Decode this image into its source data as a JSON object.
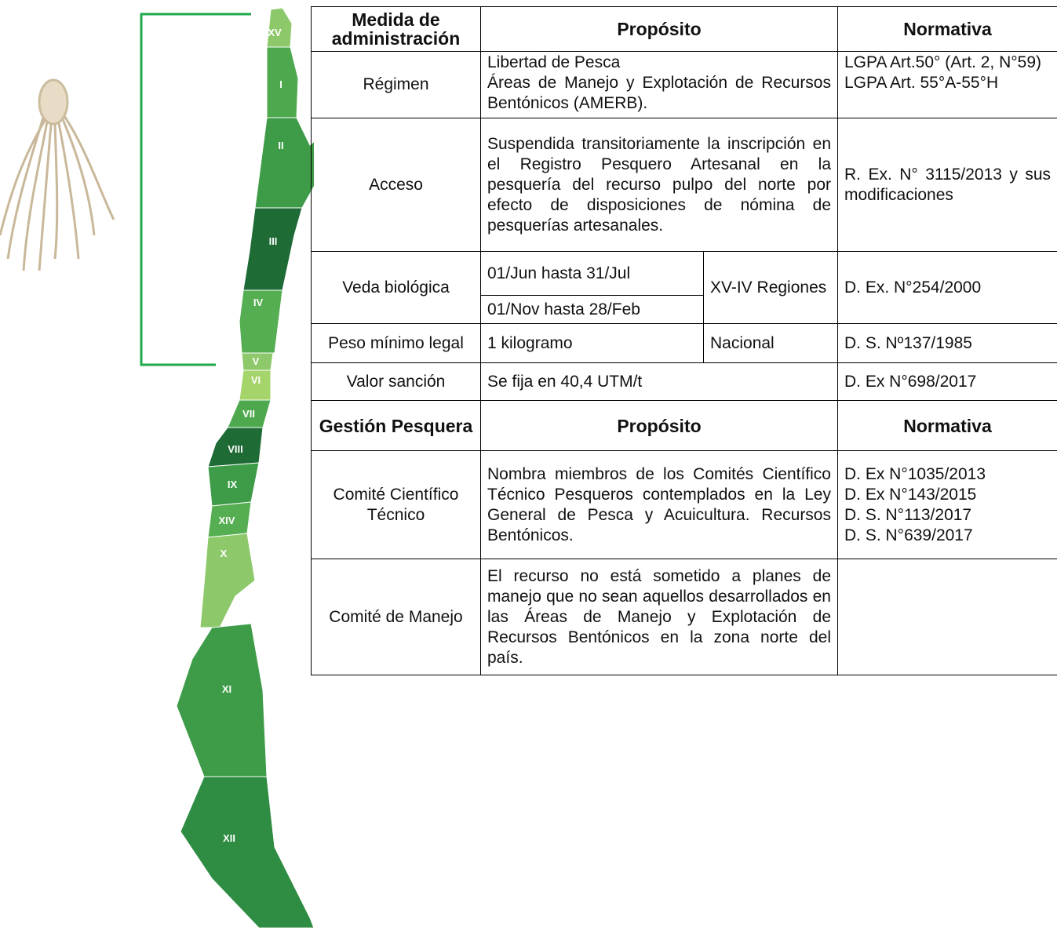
{
  "map_labels": [
    "XV",
    "I",
    "II",
    "III",
    "IV",
    "V",
    "VI",
    "VII",
    "VIII",
    "IX",
    "XIV",
    "X",
    "XI",
    "XII"
  ],
  "table": {
    "header1": [
      "Medida de administración",
      "Propósito",
      "Normativa"
    ],
    "rows": [
      {
        "label": "Régimen",
        "purpose": [
          "Libertad de Pesca",
          "Áreas de Manejo y Explotación de Recursos Bentónicos (AMERB)."
        ],
        "norms": [
          "LGPA Art.50° (Art. 2, N°59)",
          "LGPA Art. 55°A-55°H"
        ]
      },
      {
        "label": "Acceso",
        "purpose": "Suspendida transitoriamente la inscripción en el Registro Pesquero Artesanal en la pesquería del recurso pulpo del norte por efecto de disposiciones de nómina de pesquerías artesanales.",
        "norms": "R. Ex. N° 3115/2013 y sus modificaciones"
      },
      {
        "label": "Veda biológica",
        "periods": [
          "01/Jun hasta 31/Jul",
          "01/Nov hasta 28/Feb"
        ],
        "scope": "XV-IV Regiones",
        "norms": "D. Ex. N°254/2000"
      },
      {
        "label": "Peso mínimo legal",
        "purpose": "1 kilogramo",
        "scope": "Nacional",
        "norms": "D. S. Nº137/1985"
      },
      {
        "label": "Valor sanción",
        "purpose": "Se fija en 40,4 UTM/t",
        "norms": "D. Ex N°698/2017"
      }
    ],
    "header2": [
      "Gestión Pesquera",
      "Propósito",
      "Normativa"
    ],
    "rows2": [
      {
        "label": "Comité Científico Técnico",
        "purpose": "Nombra miembros de los Comités Científico Técnico Pesqueros contemplados en la Ley General de Pesca y Acuicultura. Recursos Bentónicos.",
        "norms": [
          "D. Ex N°1035/2013",
          "D. Ex N°143/2015",
          "D. S. N°113/2017",
          "D. S. N°639/2017"
        ]
      },
      {
        "label": "Comité de Manejo",
        "purpose": "El recurso no está sometido a planes de manejo que no sean aquellos desarrollados en las Áreas de Manejo y Explotación de Recursos Bentónicos en la zona norte del país."
      }
    ]
  }
}
